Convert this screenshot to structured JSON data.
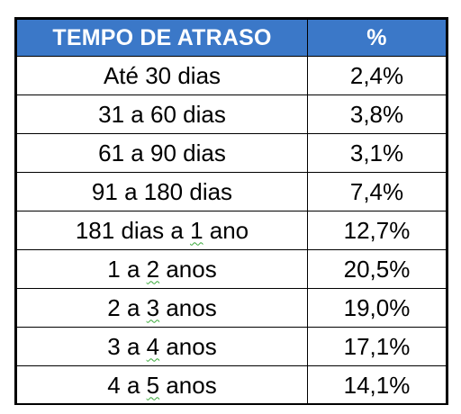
{
  "table": {
    "headers": {
      "delay": "TEMPO DE ATRASO",
      "percent": "%"
    },
    "rows": [
      {
        "delay": "Até 30 dias",
        "percent": "2,4%"
      },
      {
        "delay": "31 a 60 dias",
        "percent": "3,8%"
      },
      {
        "delay": "61 a 90 dias",
        "percent": "3,1%"
      },
      {
        "delay": "91 a 180 dias",
        "percent": "7,4%"
      },
      {
        "delay_pre": "181 dias a ",
        "delay_num": "1",
        "delay_post": " ano",
        "percent": "12,7%"
      },
      {
        "delay_pre": "1 a ",
        "delay_num": "2",
        "delay_post": " anos",
        "percent": "20,5%"
      },
      {
        "delay_pre": "2 a ",
        "delay_num": "3",
        "delay_post": " anos",
        "percent": "19,0%"
      },
      {
        "delay_pre": "3 a ",
        "delay_num": "4",
        "delay_post": " anos",
        "percent": "17,1%"
      },
      {
        "delay_pre": "4 a ",
        "delay_num": "5",
        "delay_post": " anos",
        "percent": "14,1%"
      }
    ]
  },
  "colors": {
    "header_bg": "#3b78c8",
    "header_text": "#ffffff",
    "border": "#000000",
    "spellcheck_squiggle": "#38a838"
  }
}
